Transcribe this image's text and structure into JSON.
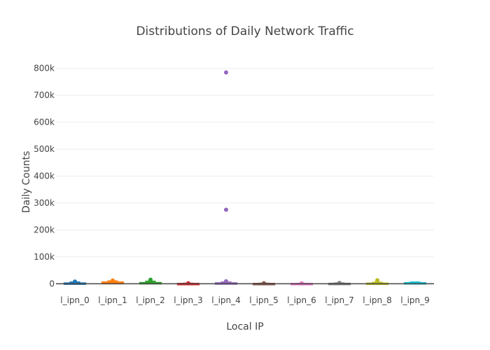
{
  "chart_data": {
    "type": "box",
    "title": "Distributions of Daily Network Traffic",
    "xlabel": "Local IP",
    "ylabel": "Daily Counts",
    "ylim": [
      -12000,
      820000
    ],
    "y_ticks": [
      0,
      100000,
      200000,
      300000,
      400000,
      500000,
      600000,
      700000,
      800000
    ],
    "y_tick_labels": [
      "0",
      "100k",
      "200k",
      "300k",
      "400k",
      "500k",
      "600k",
      "700k",
      "800k"
    ],
    "grid": true,
    "legend": "none",
    "categories": [
      "l_ipn_0",
      "l_ipn_1",
      "l_ipn_2",
      "l_ipn_3",
      "l_ipn_4",
      "l_ipn_5",
      "l_ipn_6",
      "l_ipn_7",
      "l_ipn_8",
      "l_ipn_9"
    ],
    "series": [
      {
        "category": "l_ipn_0",
        "color": "#1f77b4",
        "q1": 0,
        "median": 800,
        "q3": 2500,
        "whisker_high": 6000,
        "outliers": [
          8000
        ]
      },
      {
        "category": "l_ipn_1",
        "color": "#ff7f0e",
        "q1": 500,
        "median": 3000,
        "q3": 6000,
        "whisker_high": 10000,
        "outliers": [
          12000
        ]
      },
      {
        "category": "l_ipn_2",
        "color": "#2ca02c",
        "q1": 300,
        "median": 2000,
        "q3": 4000,
        "whisker_high": 9000,
        "outliers": [
          13000,
          15000
        ]
      },
      {
        "category": "l_ipn_3",
        "color": "#d62728",
        "q1": 0,
        "median": 300,
        "q3": 800,
        "whisker_high": 1500,
        "outliers": [
          2000
        ]
      },
      {
        "category": "l_ipn_4",
        "color": "#9467bd",
        "q1": 0,
        "median": 1000,
        "q3": 3000,
        "whisker_high": 6000,
        "outliers": [
          9000,
          275000,
          785000
        ]
      },
      {
        "category": "l_ipn_5",
        "color": "#8c564b",
        "q1": 0,
        "median": 300,
        "q3": 800,
        "whisker_high": 1500,
        "outliers": [
          2000
        ]
      },
      {
        "category": "l_ipn_6",
        "color": "#e377c2",
        "q1": 0,
        "median": 300,
        "q3": 700,
        "whisker_high": 1200,
        "outliers": [
          1500
        ]
      },
      {
        "category": "l_ipn_7",
        "color": "#7f7f7f",
        "q1": 0,
        "median": 500,
        "q3": 1200,
        "whisker_high": 2500,
        "outliers": [
          3000
        ]
      },
      {
        "category": "l_ipn_8",
        "color": "#bcbd22",
        "q1": 0,
        "median": 800,
        "q3": 2000,
        "whisker_high": 5000,
        "outliers": [
          9000,
          13000
        ]
      },
      {
        "category": "l_ipn_9",
        "color": "#17becf",
        "q1": 0,
        "median": 1500,
        "q3": 3500,
        "whisker_high": 6000,
        "outliers": []
      }
    ]
  }
}
